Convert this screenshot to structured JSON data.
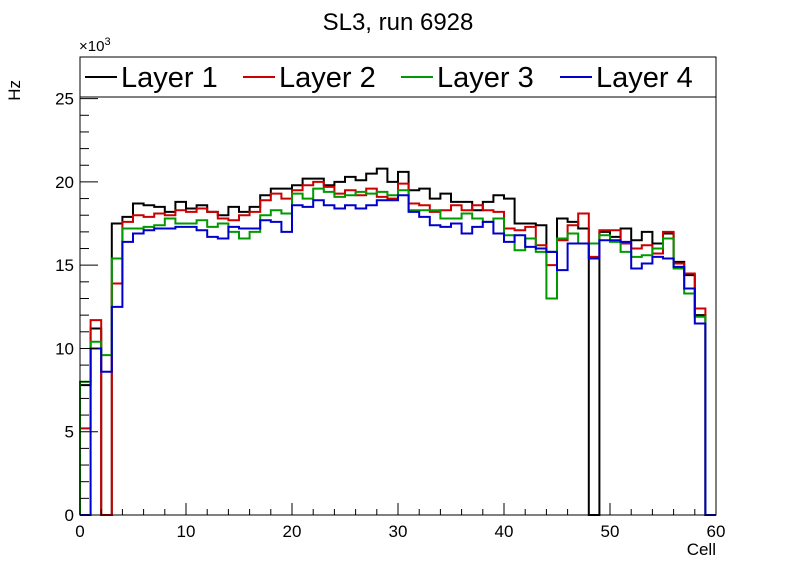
{
  "chart_data": {
    "type": "line",
    "title": "SL3, run 6928",
    "xlabel": "Cell",
    "ylabel": "Hz",
    "y_multiplier_base": "×10",
    "y_multiplier_exp": "3",
    "xlim": [
      0,
      60
    ],
    "ylim": [
      0,
      27.5
    ],
    "x_ticks": [
      0,
      10,
      20,
      30,
      40,
      50,
      60
    ],
    "x_tick_labels": [
      "0",
      "10",
      "20",
      "30",
      "40",
      "50",
      "60"
    ],
    "y_ticks": [
      0,
      5,
      10,
      15,
      20,
      25
    ],
    "y_tick_labels": [
      "0",
      "5",
      "10",
      "15",
      "20",
      "25"
    ],
    "grid": false,
    "legend_position": "top",
    "step": "histogram, unit bin width starting at 0",
    "series": [
      {
        "name": "Layer 1",
        "color": "#000000",
        "values": [
          7.8,
          11.2,
          0,
          17.5,
          17.9,
          18.7,
          18.6,
          18.5,
          18.2,
          18.8,
          18.4,
          18.6,
          18.2,
          18.0,
          18.5,
          18.2,
          18.5,
          19.2,
          19.6,
          19.6,
          19.8,
          20.2,
          20.2,
          19.8,
          20.0,
          20.3,
          20.1,
          20.5,
          20.8,
          20.0,
          20.6,
          19.5,
          19.6,
          19.0,
          19.3,
          18.8,
          18.8,
          18.3,
          18.8,
          19.2,
          19.0,
          17.5,
          17.5,
          17.4,
          15.8,
          17.8,
          17.6,
          17.2,
          0,
          17.0,
          16.7,
          17.2,
          16.5,
          17.0,
          16.3,
          16.9,
          15.2,
          14.4,
          12.0,
          0
        ]
      },
      {
        "name": "Layer 2",
        "color": "#cc0000",
        "values": [
          5.2,
          11.7,
          0,
          13.9,
          17.6,
          18.0,
          17.9,
          18.1,
          18.0,
          18.3,
          18.2,
          18.4,
          18.2,
          17.8,
          17.7,
          18.0,
          18.2,
          18.9,
          19.3,
          19.0,
          19.5,
          19.8,
          20.0,
          19.7,
          19.3,
          19.5,
          19.2,
          19.6,
          19.1,
          19.0,
          19.9,
          18.7,
          18.6,
          18.2,
          18.3,
          18.6,
          18.3,
          18.6,
          18.3,
          18.2,
          17.2,
          17.1,
          17.3,
          16.2,
          15.0,
          16.5,
          17.4,
          18.1,
          15.5,
          17.1,
          17.1,
          16.3,
          16.0,
          16.2,
          15.7,
          17.0,
          15.1,
          14.5,
          12.4,
          0
        ]
      },
      {
        "name": "Layer 3",
        "color": "#009900",
        "values": [
          8.0,
          10.4,
          9.6,
          15.4,
          17.2,
          17.2,
          17.3,
          17.4,
          17.8,
          17.5,
          17.5,
          17.7,
          17.3,
          17.5,
          17.0,
          16.6,
          17.0,
          18.0,
          18.3,
          18.1,
          19.3,
          19.0,
          19.6,
          19.4,
          19.1,
          19.2,
          19.4,
          19.3,
          19.4,
          19.2,
          19.5,
          18.3,
          18.3,
          18.3,
          17.8,
          17.8,
          18.1,
          17.8,
          17.6,
          17.8,
          16.8,
          15.9,
          16.6,
          15.8,
          13.0,
          16.6,
          16.9,
          16.3,
          16.3,
          16.8,
          16.4,
          15.8,
          15.5,
          15.6,
          16.0,
          16.6,
          14.8,
          13.3,
          11.9,
          0
        ]
      },
      {
        "name": "Layer 4",
        "color": "#0000cc",
        "values": [
          0,
          10.0,
          8.6,
          12.5,
          16.4,
          16.9,
          17.1,
          17.2,
          17.2,
          17.3,
          17.3,
          17.1,
          16.7,
          16.6,
          17.3,
          17.2,
          17.2,
          17.7,
          17.6,
          17.0,
          18.6,
          18.5,
          18.9,
          18.6,
          18.4,
          18.6,
          18.4,
          18.6,
          18.9,
          18.9,
          19.2,
          18.2,
          17.9,
          17.4,
          17.3,
          17.5,
          16.9,
          17.3,
          17.6,
          16.9,
          16.4,
          16.8,
          16.1,
          16.0,
          15.8,
          14.7,
          16.3,
          16.3,
          15.4,
          16.5,
          16.5,
          16.4,
          14.8,
          15.1,
          15.5,
          15.4,
          14.9,
          13.6,
          11.5,
          0
        ]
      }
    ]
  }
}
